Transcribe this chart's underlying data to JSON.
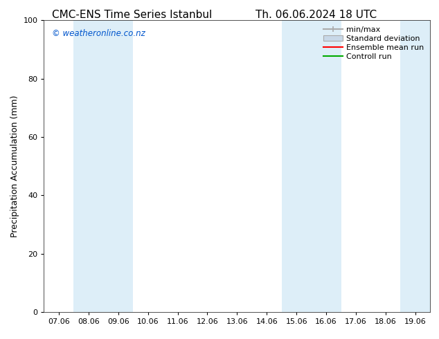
{
  "title_left": "CMC-ENS Time Series Istanbul",
  "title_right": "Th. 06.06.2024 18 UTC",
  "ylabel": "Precipitation Accumulation (mm)",
  "ylim": [
    0,
    100
  ],
  "yticks": [
    0,
    20,
    40,
    60,
    80,
    100
  ],
  "xtick_labels": [
    "07.06",
    "08.06",
    "09.06",
    "10.06",
    "11.06",
    "12.06",
    "13.06",
    "14.06",
    "15.06",
    "16.06",
    "17.06",
    "18.06",
    "19.06"
  ],
  "watermark": "© weatheronline.co.nz",
  "watermark_color": "#0055cc",
  "background_color": "#ffffff",
  "plot_bg_color": "#ffffff",
  "shade_color": "#ddeef8",
  "shaded_ranges": [
    [
      1,
      2
    ],
    [
      8,
      9
    ],
    [
      12,
      12
    ]
  ],
  "legend_entries": [
    "min/max",
    "Standard deviation",
    "Ensemble mean run",
    "Controll run"
  ],
  "minmax_color": "#aaaaaa",
  "std_color": "#c8d8e8",
  "mean_color": "#ff0000",
  "control_color": "#00aa00",
  "title_fontsize": 11,
  "axis_fontsize": 9,
  "tick_fontsize": 8,
  "legend_fontsize": 8
}
